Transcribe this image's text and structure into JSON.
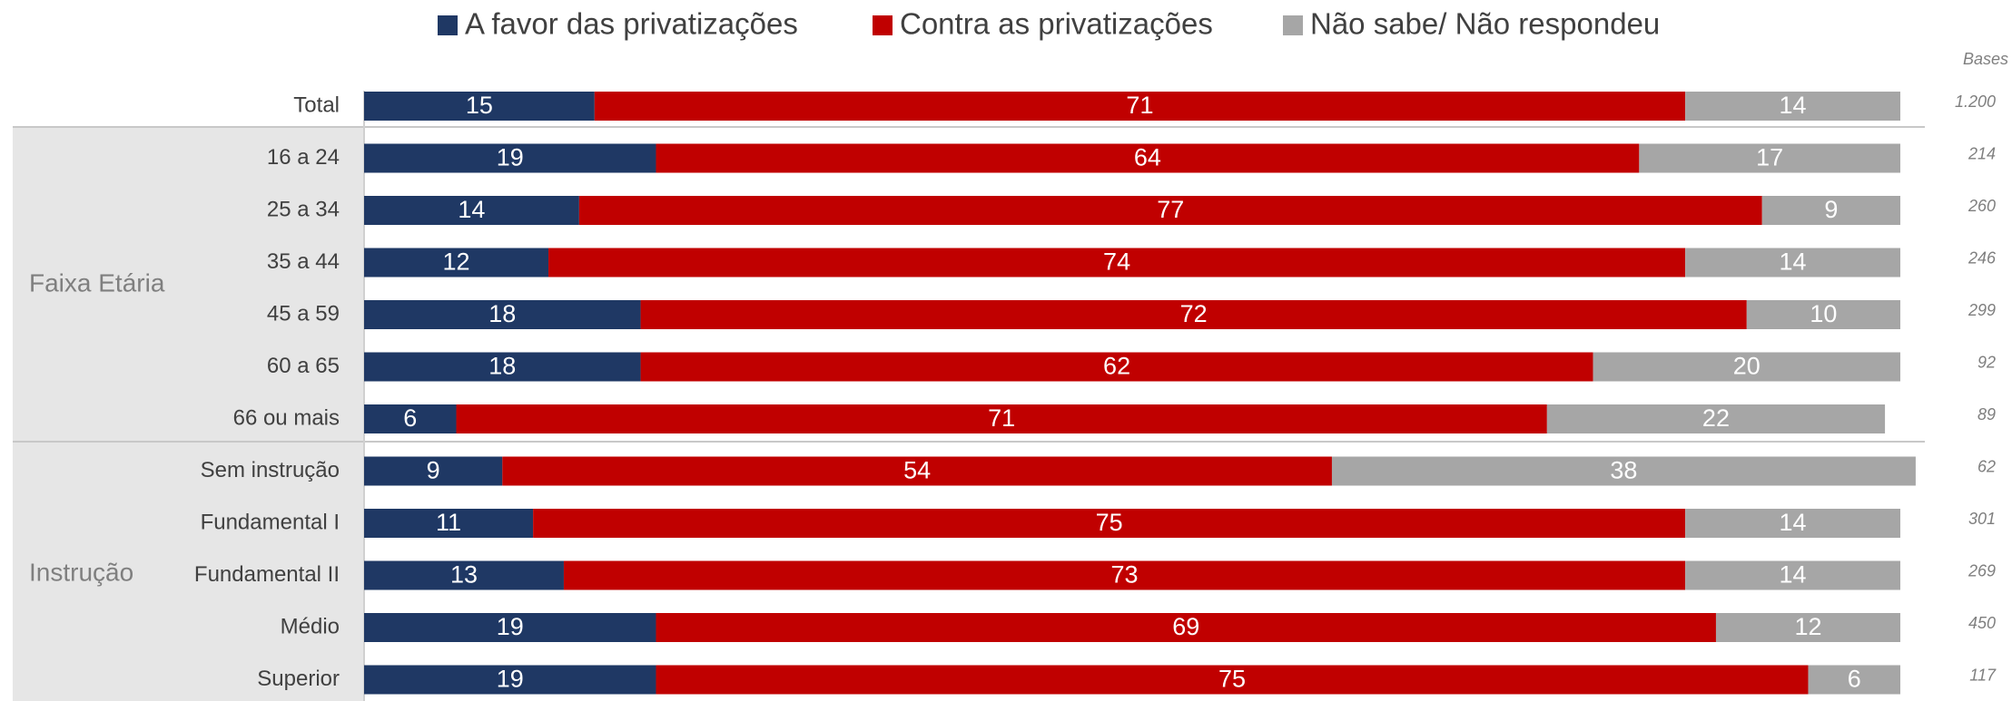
{
  "chart_data": {
    "type": "stacked_barh",
    "categories": [
      "Total",
      "16 a 24",
      "25 a 34",
      "35 a 44",
      "45 a 59",
      "60 a 65",
      "66 ou mais",
      "Sem instrução",
      "Fundamental I",
      "Fundamental II",
      "Médio",
      "Superior"
    ],
    "group_labels": [
      "Faixa Etária",
      "Instrução"
    ],
    "series": [
      {
        "name": "A favor das privatizações",
        "color": "#1f3864",
        "values": [
          15,
          19,
          14,
          12,
          18,
          18,
          6,
          9,
          11,
          13,
          19,
          19
        ]
      },
      {
        "name": "Contra as privatizações",
        "color": "#c00000",
        "values": [
          71,
          64,
          77,
          74,
          72,
          62,
          71,
          54,
          75,
          73,
          69,
          75
        ]
      },
      {
        "name": "Não sabe/ Não respondeu",
        "color": "#a6a6a6",
        "values": [
          14,
          17,
          9,
          14,
          10,
          20,
          22,
          38,
          14,
          14,
          12,
          6
        ]
      }
    ],
    "xlim": [
      0,
      100
    ],
    "bases_title": "Bases",
    "bases": [
      "1.200",
      "214",
      "260",
      "246",
      "299",
      "92",
      "89",
      "62",
      "301",
      "269",
      "450",
      "117"
    ]
  }
}
